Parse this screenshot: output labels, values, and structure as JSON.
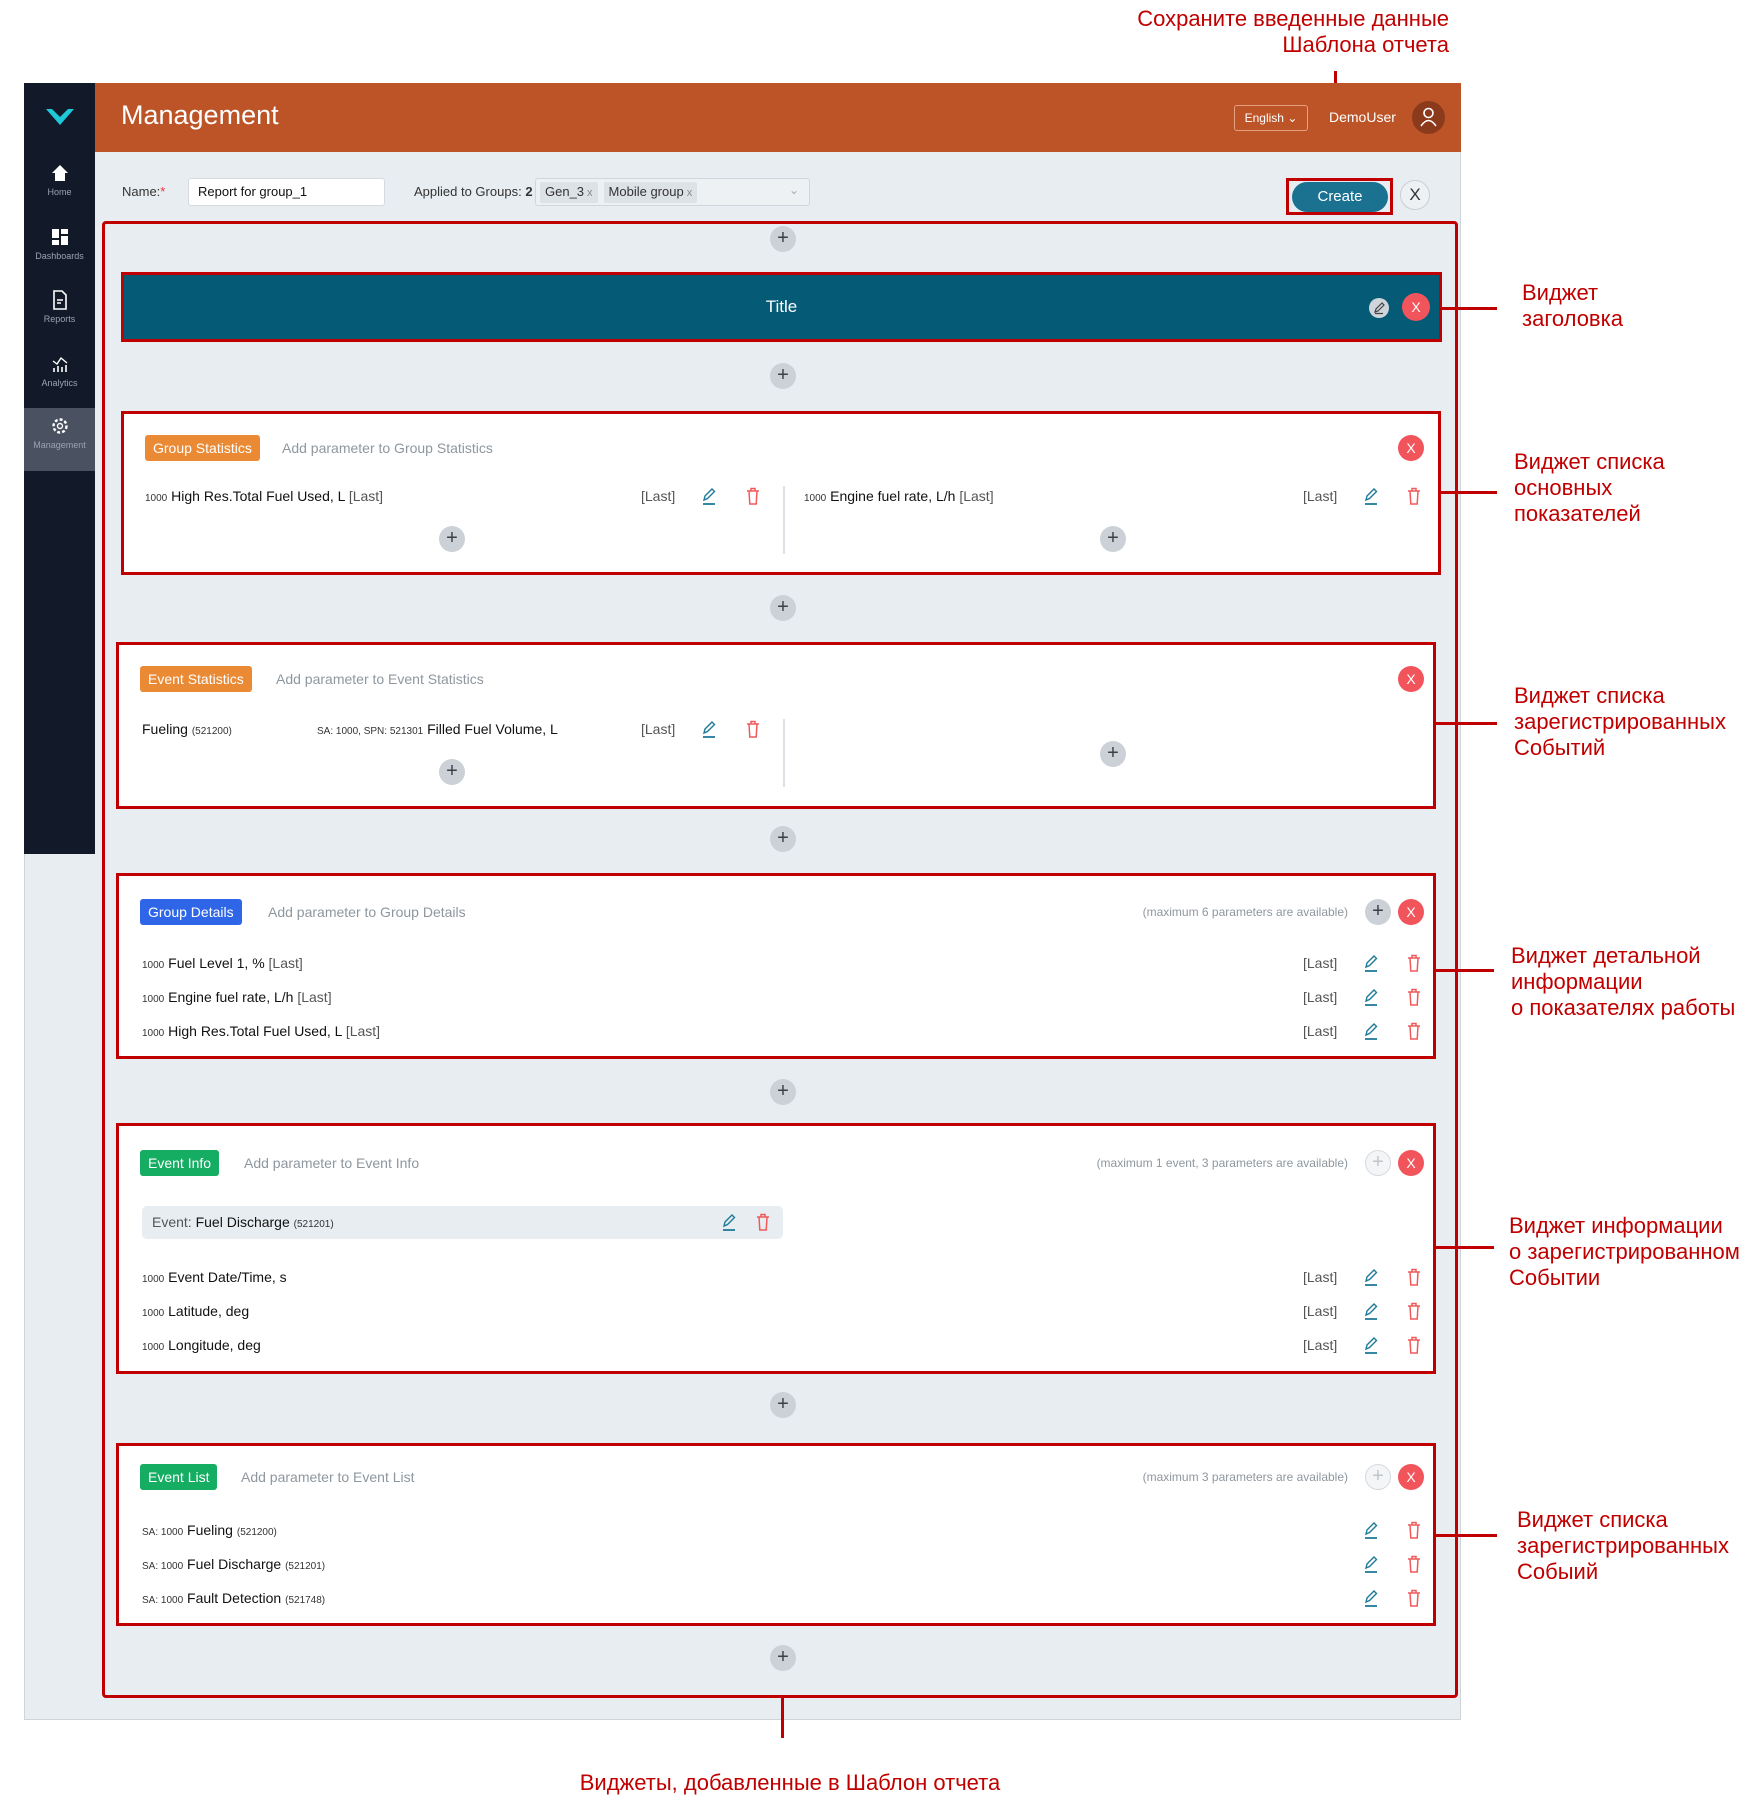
{
  "annotations": {
    "save_hint_line1": "Сохраните введенные данные",
    "save_hint_line2": "Шаблона отчета",
    "title_widget": [
      "Виджет",
      "заголовка"
    ],
    "group_statistics": [
      "Виджет списка",
      "основных",
      "показателей"
    ],
    "event_statistics": [
      "Виджет списка",
      "зарегистрированных",
      "Событий"
    ],
    "group_details": [
      "Виджет детальной",
      "информации",
      "о показателях работы"
    ],
    "event_info": [
      "Виджет информации",
      "о зарегистрированном",
      "Событии"
    ],
    "event_list": [
      "Виджет списка",
      "зарегистрированных",
      "Собыий"
    ],
    "widgets_added": "Виджеты, добавленные в Шаблон отчета",
    "color": "#c00000"
  },
  "sidebar": {
    "items": [
      {
        "label": "Home",
        "icon": "home-icon"
      },
      {
        "label": "Dashboards",
        "icon": "dashboard-icon"
      },
      {
        "label": "Reports",
        "icon": "report-icon"
      },
      {
        "label": "Analytics",
        "icon": "analytics-icon"
      },
      {
        "label": "Management",
        "icon": "gear-icon",
        "active": true
      }
    ]
  },
  "header": {
    "title": "Management",
    "language": "English",
    "user": "DemoUser",
    "color": "#bd5427"
  },
  "form": {
    "name_label": "Name:",
    "required_mark": "*",
    "name_value": "Report for group_1",
    "groups_label": "Applied to Groups:",
    "groups_count": "2",
    "groups": [
      "Gen_3",
      "Mobile group"
    ],
    "chip_remove": "x",
    "create_label": "Create",
    "close_label": "X"
  },
  "title_widget": {
    "text": "Title",
    "close": "X",
    "color": "#055a76"
  },
  "group_statistics": {
    "badge": "Group Statistics",
    "hint": "Add parameter to Group Statistics",
    "close": "X",
    "left": {
      "sa": "1000",
      "name": "High Res.Total Fuel Used, L",
      "agg": "[Last]",
      "mode": "[Last]"
    },
    "right": {
      "sa": "1000",
      "name": "Engine fuel rate, L/h",
      "agg": "[Last]",
      "mode": "[Last]"
    }
  },
  "event_statistics": {
    "badge": "Event Statistics",
    "hint": "Add parameter to Event Statistics",
    "close": "X",
    "event": "Fueling",
    "event_code": "(521200)",
    "param_prefix": "SA: 1000, SPN: 521301",
    "param_name": "Filled Fuel Volume, L",
    "mode": "[Last]"
  },
  "group_details": {
    "badge": "Group Details",
    "hint": "Add parameter to Group Details",
    "max_hint": "(maximum 6 parameters are available)",
    "close": "X",
    "rows": [
      {
        "sa": "1000",
        "name": "Fuel Level 1, %",
        "agg": "[Last]",
        "mode": "[Last]"
      },
      {
        "sa": "1000",
        "name": "Engine fuel rate, L/h",
        "agg": "[Last]",
        "mode": "[Last]"
      },
      {
        "sa": "1000",
        "name": "High Res.Total Fuel Used, L",
        "agg": "[Last]",
        "mode": "[Last]"
      }
    ]
  },
  "event_info": {
    "badge": "Event Info",
    "hint": "Add parameter to Event Info",
    "max_hint": "(maximum 1 event, 3 parameters are available)",
    "close": "X",
    "event_label": "Event:",
    "event_name": "Fuel Discharge",
    "event_code": "(521201)",
    "rows": [
      {
        "sa": "1000",
        "name": "Event Date/Time, s",
        "mode": "[Last]"
      },
      {
        "sa": "1000",
        "name": "Latitude, deg",
        "mode": "[Last]"
      },
      {
        "sa": "1000",
        "name": "Longitude, deg",
        "mode": "[Last]"
      }
    ]
  },
  "event_list": {
    "badge": "Event List",
    "hint": "Add parameter to Event List",
    "max_hint": "(maximum 3 parameters are available)",
    "close": "X",
    "rows": [
      {
        "sa": "SA: 1000",
        "name": "Fueling",
        "code": "(521200)"
      },
      {
        "sa": "SA: 1000",
        "name": "Fuel Discharge",
        "code": "(521201)"
      },
      {
        "sa": "SA: 1000",
        "name": "Fault Detection",
        "code": "(521748)"
      }
    ]
  },
  "colors": {
    "orange_badge": "#ea8a35",
    "blue_badge": "#2f66e8",
    "green_badge": "#14ad62",
    "close": "#f2545b",
    "edit": "#1f7a99",
    "delete": "#f05a5a"
  }
}
